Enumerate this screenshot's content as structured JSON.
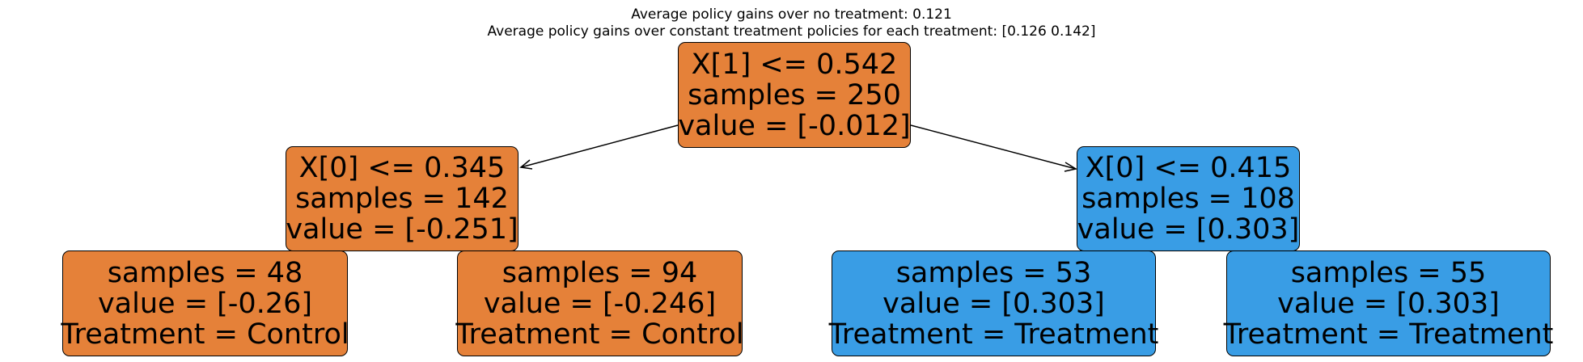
{
  "title": {
    "line1": "Average policy gains over no treatment: 0.121",
    "line2": "Average policy gains over constant treatment policies for each treatment: [0.126 0.142]"
  },
  "colors": {
    "control": "#e58139",
    "treatment": "#399de5"
  },
  "tree": {
    "root": {
      "split": "X[1] <= 0.542",
      "samples": "samples = 250",
      "value": "value = [-0.012]"
    },
    "left": {
      "split": "X[0] <= 0.345",
      "samples": "samples = 142",
      "value": "value = [-0.251]"
    },
    "right": {
      "split": "X[0] <= 0.415",
      "samples": "samples = 108",
      "value": "value = [0.303]"
    },
    "ll": {
      "samples": "samples = 48",
      "value": "value = [-0.26]",
      "treatment": "Treatment = Control"
    },
    "lr": {
      "samples": "samples = 94",
      "value": "value = [-0.246]",
      "treatment": "Treatment = Control"
    },
    "rl": {
      "samples": "samples = 53",
      "value": "value = [0.303]",
      "treatment": "Treatment = Treatment"
    },
    "rr": {
      "samples": "samples = 55",
      "value": "value = [0.303]",
      "treatment": "Treatment = Treatment"
    }
  }
}
